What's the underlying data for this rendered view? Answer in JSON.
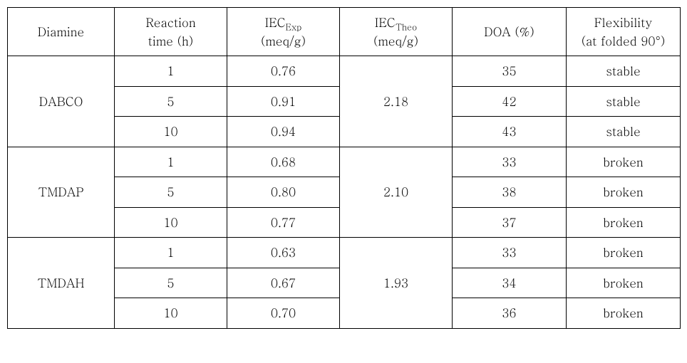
{
  "headers": {
    "diamine": "Diamine",
    "reaction_time_l1": "Reaction",
    "reaction_time_l2": "time (h)",
    "iec_exp_pre": "IEC",
    "iec_exp_sub": "Exp",
    "iec_exp_unit": "(meq/g)",
    "iec_theo_pre": "IEC",
    "iec_theo_sub": "Theo",
    "iec_theo_unit": "(meq/g)",
    "doa": "DOA (%)",
    "flex_l1": "Flexibility",
    "flex_l2": "(at folded 90°)"
  },
  "groups": [
    {
      "name": "DABCO",
      "iec_theo": "2.18",
      "rows": [
        {
          "time": "1",
          "iec_exp": "0.76",
          "doa": "35",
          "flex": "stable"
        },
        {
          "time": "5",
          "iec_exp": "0.91",
          "doa": "42",
          "flex": "stable"
        },
        {
          "time": "10",
          "iec_exp": "0.94",
          "doa": "43",
          "flex": "stable"
        }
      ]
    },
    {
      "name": "TMDAP",
      "iec_theo": "2.10",
      "rows": [
        {
          "time": "1",
          "iec_exp": "0.68",
          "doa": "33",
          "flex": "broken"
        },
        {
          "time": "5",
          "iec_exp": "0.80",
          "doa": "38",
          "flex": "broken"
        },
        {
          "time": "10",
          "iec_exp": "0.77",
          "doa": "37",
          "flex": "broken"
        }
      ]
    },
    {
      "name": "TMDAH",
      "iec_theo": "1.93",
      "rows": [
        {
          "time": "1",
          "iec_exp": "0.63",
          "doa": "33",
          "flex": "broken"
        },
        {
          "time": "5",
          "iec_exp": "0.67",
          "doa": "34",
          "flex": "broken"
        },
        {
          "time": "10",
          "iec_exp": "0.70",
          "doa": "36",
          "flex": "broken"
        }
      ]
    }
  ]
}
